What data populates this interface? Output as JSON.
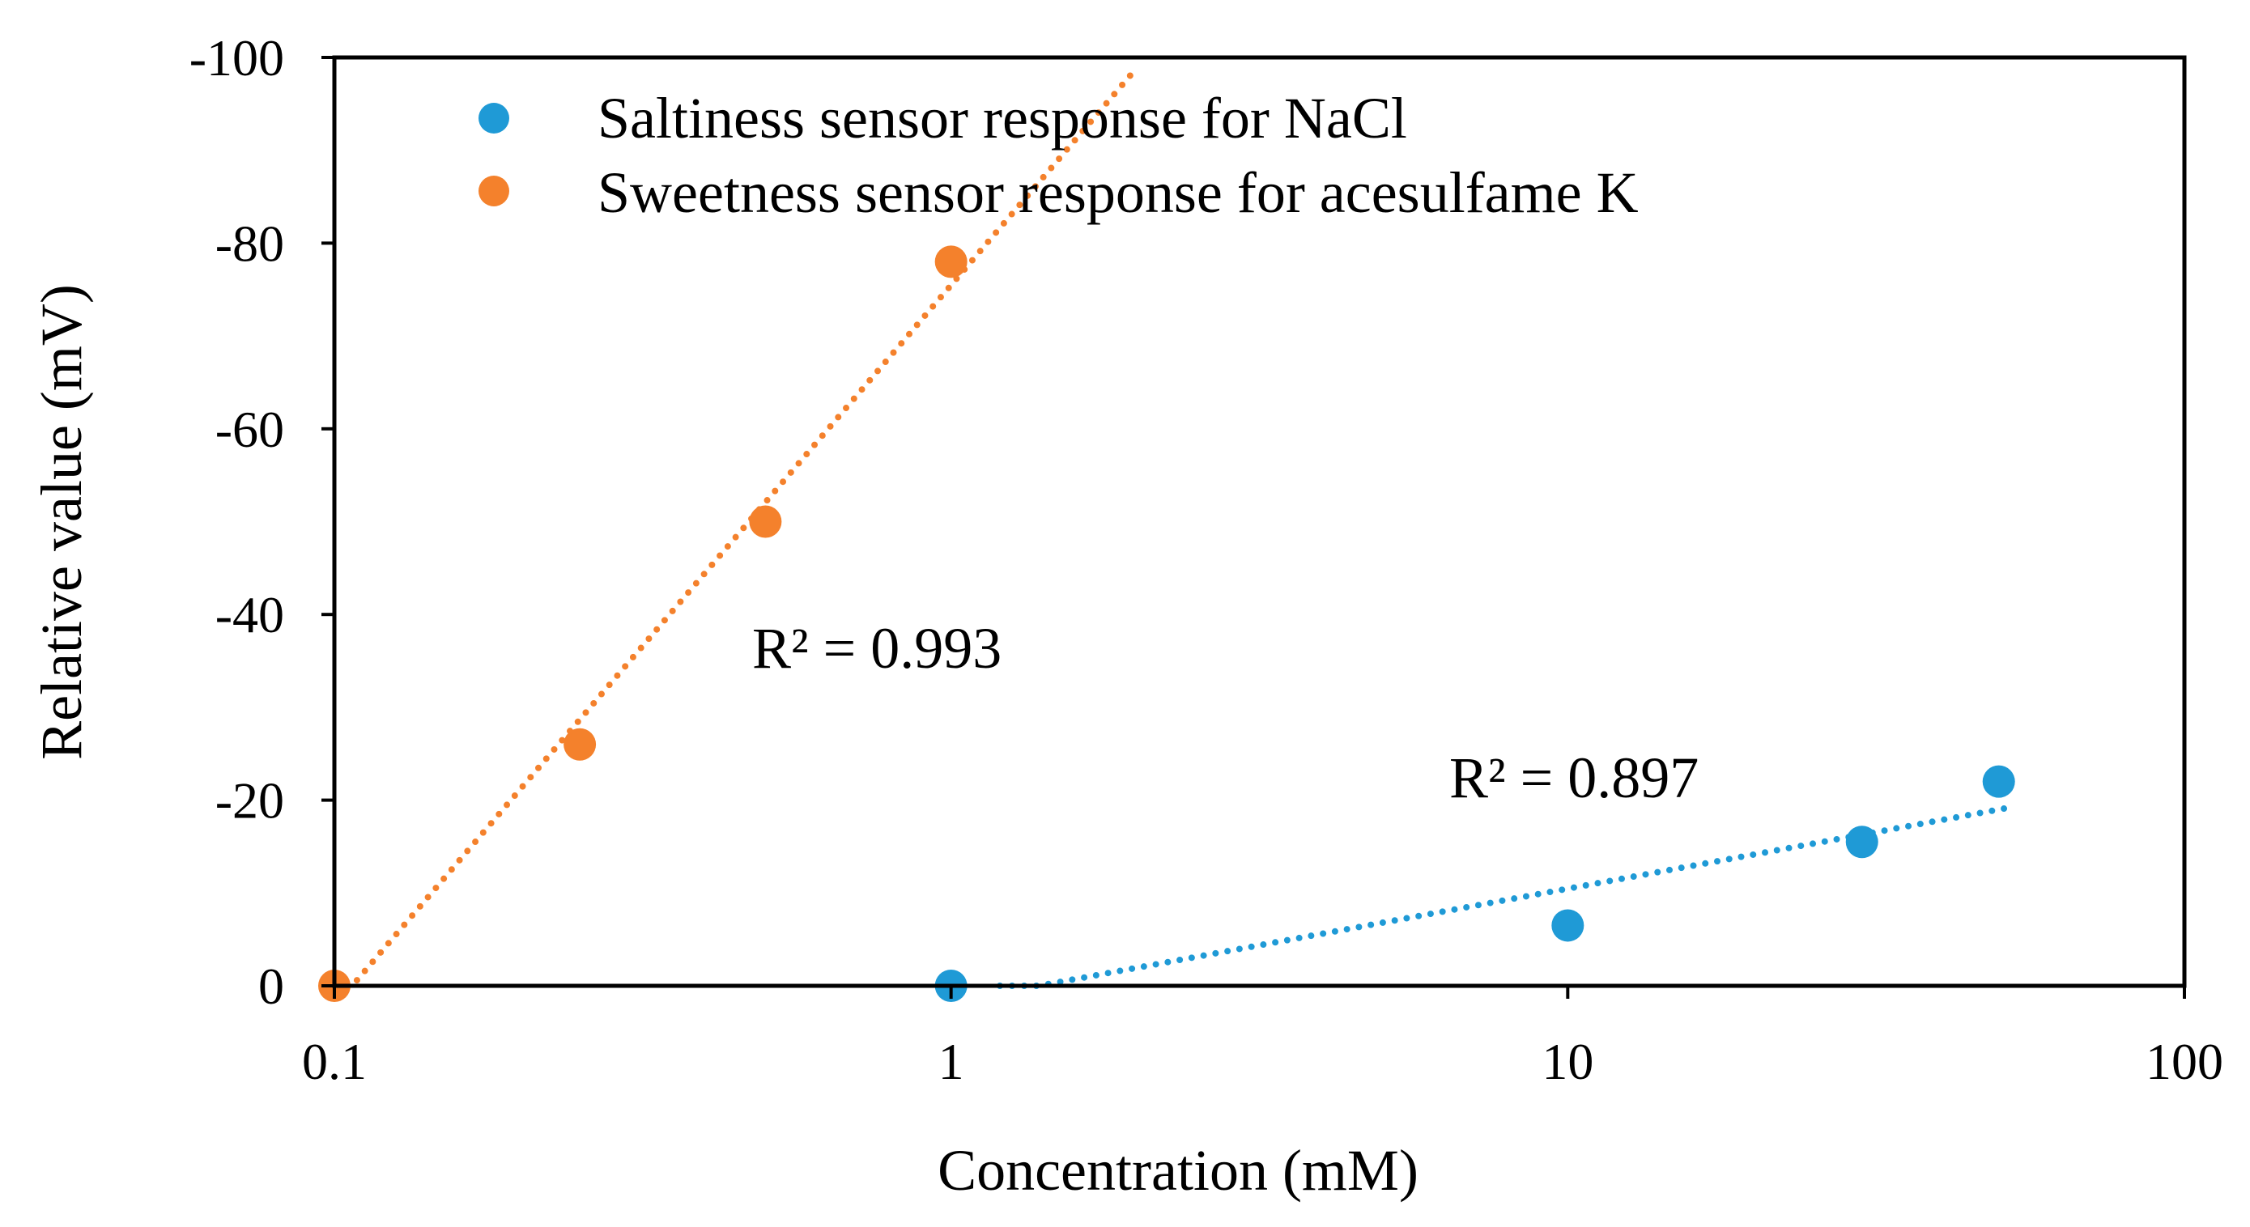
{
  "chart_data": {
    "type": "scatter",
    "title": "",
    "xlabel": "Concentration (mM)",
    "ylabel": "Relative value (mV)",
    "xscale": "log",
    "xlim": [
      0.1,
      100
    ],
    "ylim": [
      0,
      -100
    ],
    "y_axis_inverted": true,
    "xticks": [
      0.1,
      1,
      10,
      100
    ],
    "xtick_labels": [
      "0.1",
      "1",
      "10",
      "100"
    ],
    "yticks": [
      0,
      -20,
      -40,
      -60,
      -80,
      -100
    ],
    "ytick_labels": [
      "0",
      "-20",
      "-40",
      "-60",
      "-80",
      "-100"
    ],
    "grid": false,
    "legend_position": "top-left",
    "series": [
      {
        "name": "Saltiness sensor response for NaCl",
        "color": "#1f9ad6",
        "x": [
          1,
          10,
          30,
          50
        ],
        "y": [
          0,
          -6.5,
          -15.5,
          -22
        ],
        "trendline": {
          "style": "dotted",
          "type": "logarithmic",
          "x_range": [
            1.2,
            52
          ],
          "r2_label": "R² = 0.897"
        }
      },
      {
        "name": "Sweetness sensor response for acesulfame K",
        "color": "#f4812c",
        "x": [
          0.1,
          0.25,
          0.5,
          1
        ],
        "y": [
          0,
          -26,
          -50,
          -78
        ],
        "trendline": {
          "style": "dotted",
          "type": "logarithmic",
          "x_range": [
            0.1,
            2
          ],
          "r2_label": "R² = 0.993"
        }
      }
    ]
  }
}
